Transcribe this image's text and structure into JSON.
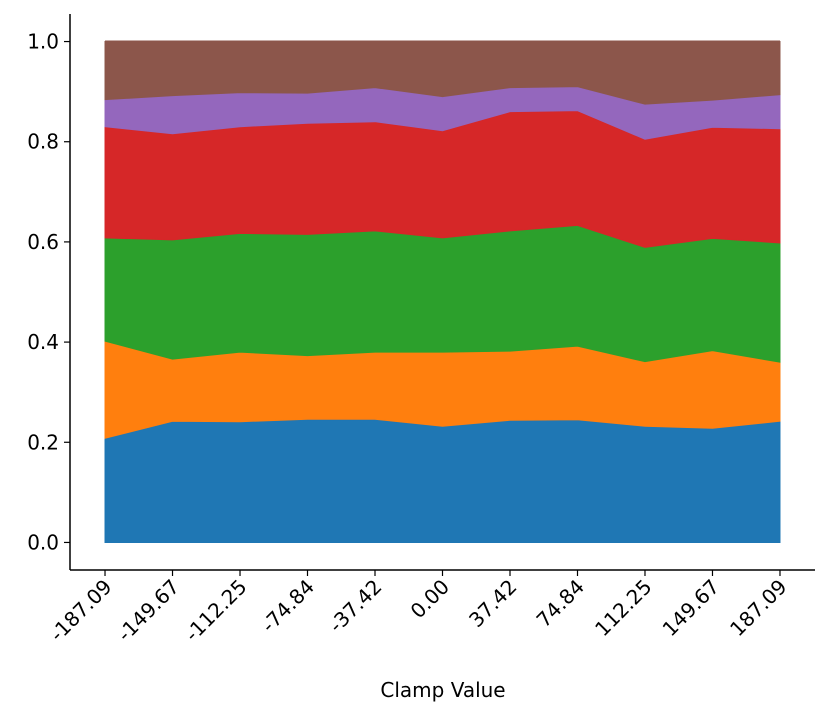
{
  "chart_data": {
    "type": "area",
    "stacked": true,
    "title": "",
    "xlabel": "Clamp Value",
    "ylabel": "",
    "x": [
      -187.09,
      -149.67,
      -112.25,
      -74.84,
      -37.42,
      0.0,
      37.42,
      74.84,
      112.25,
      149.67,
      187.09
    ],
    "x_tick_labels": [
      "-187.09",
      "-149.67",
      "-112.25",
      "-74.84",
      "-37.42",
      "0.00",
      "37.42",
      "74.84",
      "112.25",
      "149.67",
      "187.09"
    ],
    "y_tick_labels": [
      "0.0",
      "0.2",
      "0.4",
      "0.6",
      "0.8",
      "1.0"
    ],
    "y_ticks": [
      0.0,
      0.2,
      0.4,
      0.6,
      0.8,
      1.0
    ],
    "ylim": [
      -0.055,
      1.055
    ],
    "xlim": [
      -206.5,
      206.5
    ],
    "grid": false,
    "series": [
      {
        "color": "#1f77b4",
        "values": [
          0.208,
          0.242,
          0.241,
          0.246,
          0.246,
          0.232,
          0.244,
          0.245,
          0.232,
          0.228,
          0.242
        ]
      },
      {
        "color": "#ff7f0e",
        "values": [
          0.194,
          0.124,
          0.139,
          0.127,
          0.134,
          0.148,
          0.138,
          0.147,
          0.129,
          0.155,
          0.118
        ]
      },
      {
        "color": "#2ca02c",
        "values": [
          0.206,
          0.238,
          0.237,
          0.242,
          0.242,
          0.228,
          0.24,
          0.241,
          0.228,
          0.224,
          0.238
        ]
      },
      {
        "color": "#d62728",
        "values": [
          0.222,
          0.212,
          0.213,
          0.222,
          0.218,
          0.214,
          0.238,
          0.229,
          0.216,
          0.222,
          0.228
        ]
      },
      {
        "color": "#9467bd",
        "values": [
          0.054,
          0.076,
          0.068,
          0.06,
          0.068,
          0.068,
          0.048,
          0.048,
          0.07,
          0.054,
          0.068
        ]
      },
      {
        "color": "#8c564b",
        "values": [
          0.116,
          0.108,
          0.102,
          0.103,
          0.092,
          0.11,
          0.092,
          0.09,
          0.125,
          0.117,
          0.106
        ]
      }
    ]
  }
}
